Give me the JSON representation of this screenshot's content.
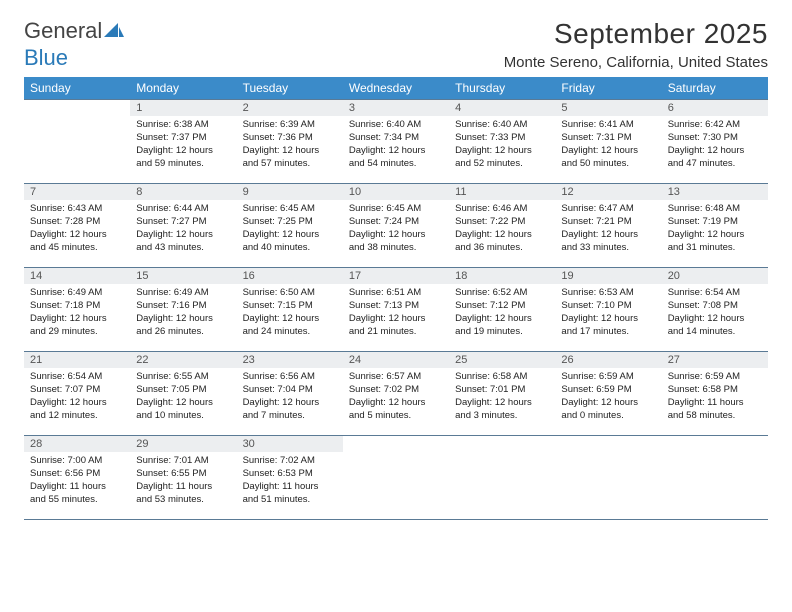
{
  "brand": {
    "part1": "General",
    "part2": "Blue"
  },
  "title": "September 2025",
  "location": "Monte Sereno, California, United States",
  "colors": {
    "header_bg": "#3b8bc9",
    "header_fg": "#ffffff",
    "daynum_bg": "#eceef0",
    "daynum_fg": "#555555",
    "rule": "#5a7a95",
    "body_text": "#222222",
    "brand_blue": "#2a7ab8"
  },
  "typography": {
    "title_fontsize": 28,
    "location_fontsize": 15,
    "dayheader_fontsize": 12,
    "daynum_fontsize": 11,
    "cell_fontsize": 9.5
  },
  "dayHeaders": [
    "Sunday",
    "Monday",
    "Tuesday",
    "Wednesday",
    "Thursday",
    "Friday",
    "Saturday"
  ],
  "weeks": [
    [
      null,
      {
        "n": "1",
        "sr": "6:38 AM",
        "ss": "7:37 PM",
        "dl": "12 hours and 59 minutes."
      },
      {
        "n": "2",
        "sr": "6:39 AM",
        "ss": "7:36 PM",
        "dl": "12 hours and 57 minutes."
      },
      {
        "n": "3",
        "sr": "6:40 AM",
        "ss": "7:34 PM",
        "dl": "12 hours and 54 minutes."
      },
      {
        "n": "4",
        "sr": "6:40 AM",
        "ss": "7:33 PM",
        "dl": "12 hours and 52 minutes."
      },
      {
        "n": "5",
        "sr": "6:41 AM",
        "ss": "7:31 PM",
        "dl": "12 hours and 50 minutes."
      },
      {
        "n": "6",
        "sr": "6:42 AM",
        "ss": "7:30 PM",
        "dl": "12 hours and 47 minutes."
      }
    ],
    [
      {
        "n": "7",
        "sr": "6:43 AM",
        "ss": "7:28 PM",
        "dl": "12 hours and 45 minutes."
      },
      {
        "n": "8",
        "sr": "6:44 AM",
        "ss": "7:27 PM",
        "dl": "12 hours and 43 minutes."
      },
      {
        "n": "9",
        "sr": "6:45 AM",
        "ss": "7:25 PM",
        "dl": "12 hours and 40 minutes."
      },
      {
        "n": "10",
        "sr": "6:45 AM",
        "ss": "7:24 PM",
        "dl": "12 hours and 38 minutes."
      },
      {
        "n": "11",
        "sr": "6:46 AM",
        "ss": "7:22 PM",
        "dl": "12 hours and 36 minutes."
      },
      {
        "n": "12",
        "sr": "6:47 AM",
        "ss": "7:21 PM",
        "dl": "12 hours and 33 minutes."
      },
      {
        "n": "13",
        "sr": "6:48 AM",
        "ss": "7:19 PM",
        "dl": "12 hours and 31 minutes."
      }
    ],
    [
      {
        "n": "14",
        "sr": "6:49 AM",
        "ss": "7:18 PM",
        "dl": "12 hours and 29 minutes."
      },
      {
        "n": "15",
        "sr": "6:49 AM",
        "ss": "7:16 PM",
        "dl": "12 hours and 26 minutes."
      },
      {
        "n": "16",
        "sr": "6:50 AM",
        "ss": "7:15 PM",
        "dl": "12 hours and 24 minutes."
      },
      {
        "n": "17",
        "sr": "6:51 AM",
        "ss": "7:13 PM",
        "dl": "12 hours and 21 minutes."
      },
      {
        "n": "18",
        "sr": "6:52 AM",
        "ss": "7:12 PM",
        "dl": "12 hours and 19 minutes."
      },
      {
        "n": "19",
        "sr": "6:53 AM",
        "ss": "7:10 PM",
        "dl": "12 hours and 17 minutes."
      },
      {
        "n": "20",
        "sr": "6:54 AM",
        "ss": "7:08 PM",
        "dl": "12 hours and 14 minutes."
      }
    ],
    [
      {
        "n": "21",
        "sr": "6:54 AM",
        "ss": "7:07 PM",
        "dl": "12 hours and 12 minutes."
      },
      {
        "n": "22",
        "sr": "6:55 AM",
        "ss": "7:05 PM",
        "dl": "12 hours and 10 minutes."
      },
      {
        "n": "23",
        "sr": "6:56 AM",
        "ss": "7:04 PM",
        "dl": "12 hours and 7 minutes."
      },
      {
        "n": "24",
        "sr": "6:57 AM",
        "ss": "7:02 PM",
        "dl": "12 hours and 5 minutes."
      },
      {
        "n": "25",
        "sr": "6:58 AM",
        "ss": "7:01 PM",
        "dl": "12 hours and 3 minutes."
      },
      {
        "n": "26",
        "sr": "6:59 AM",
        "ss": "6:59 PM",
        "dl": "12 hours and 0 minutes."
      },
      {
        "n": "27",
        "sr": "6:59 AM",
        "ss": "6:58 PM",
        "dl": "11 hours and 58 minutes."
      }
    ],
    [
      {
        "n": "28",
        "sr": "7:00 AM",
        "ss": "6:56 PM",
        "dl": "11 hours and 55 minutes."
      },
      {
        "n": "29",
        "sr": "7:01 AM",
        "ss": "6:55 PM",
        "dl": "11 hours and 53 minutes."
      },
      {
        "n": "30",
        "sr": "7:02 AM",
        "ss": "6:53 PM",
        "dl": "11 hours and 51 minutes."
      },
      null,
      null,
      null,
      null
    ]
  ],
  "labels": {
    "sunrise": "Sunrise:",
    "sunset": "Sunset:",
    "daylight": "Daylight:"
  }
}
